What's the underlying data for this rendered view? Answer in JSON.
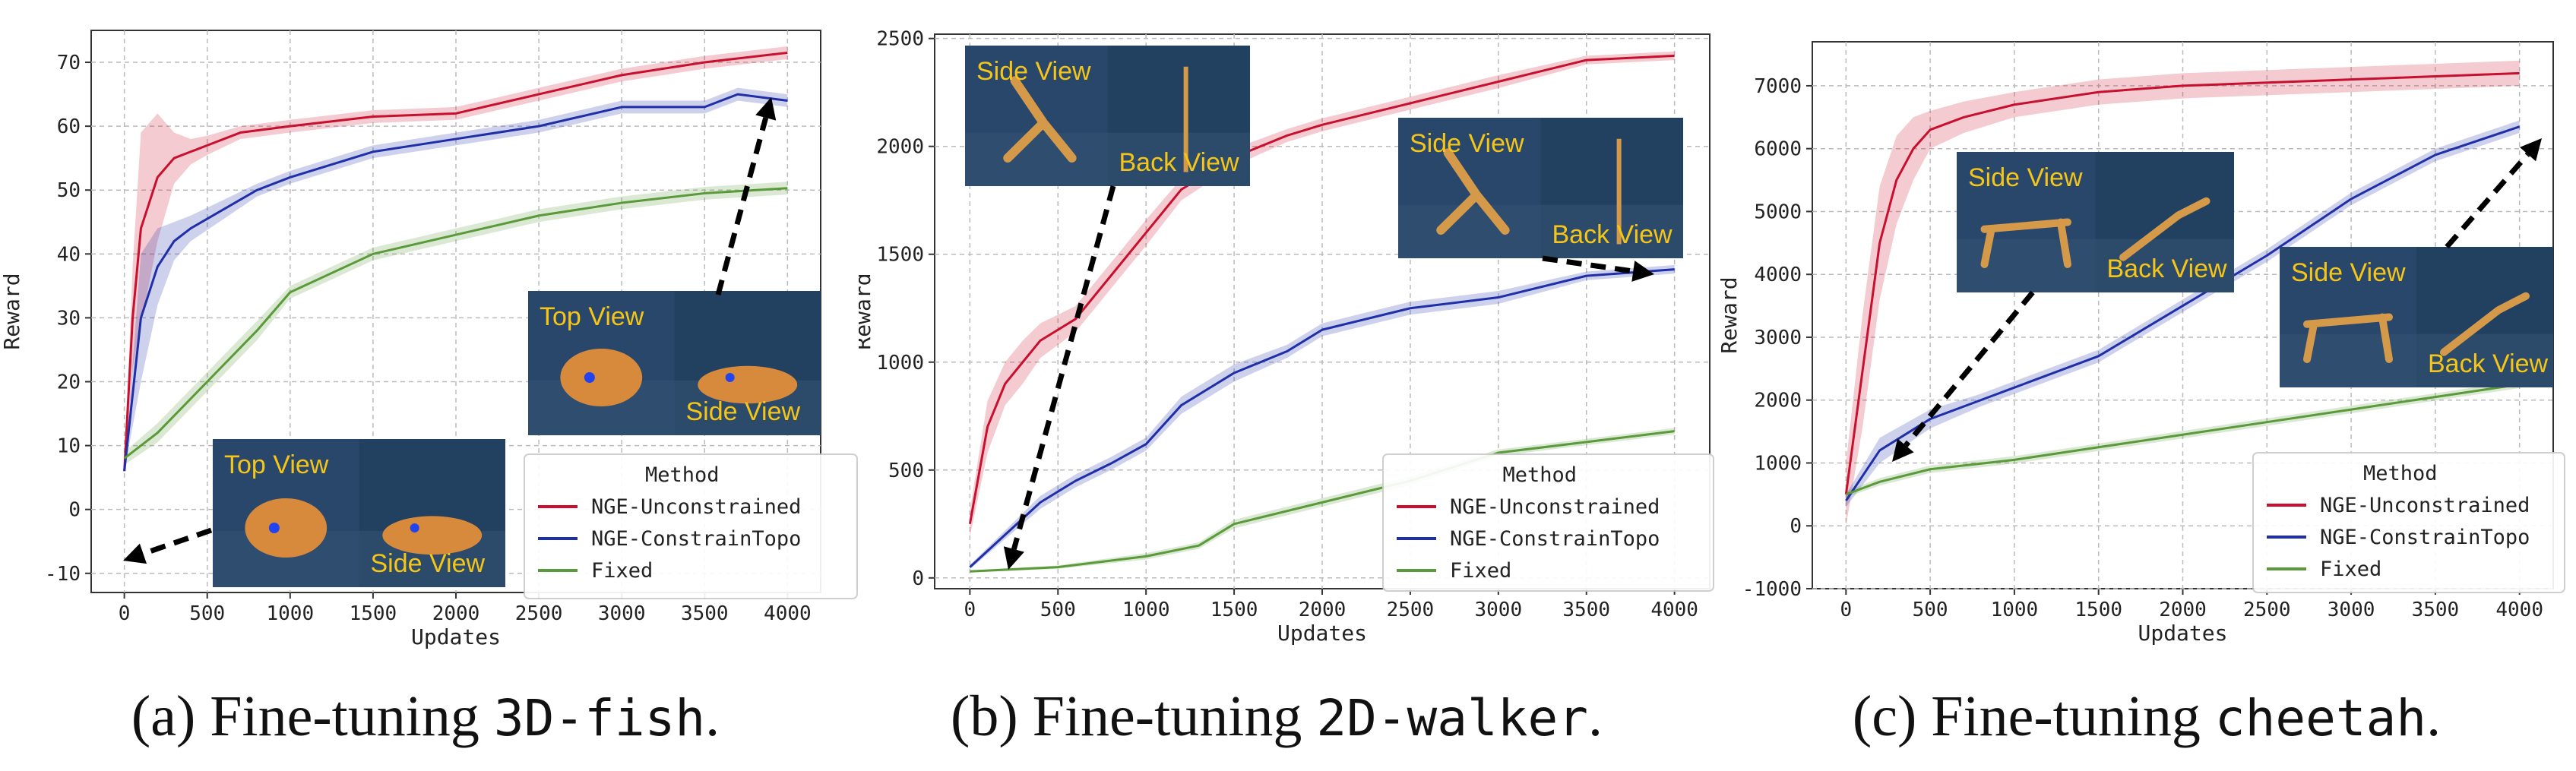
{
  "colors": {
    "unconstrained": "#c8102e",
    "constrain": "#1f2fa8",
    "fixed": "#5a9a3a"
  },
  "chart_data": [
    {
      "type": "line",
      "caption_prefix": "(a) Fine-tuning ",
      "caption_mono": "3D-fish",
      "caption_suffix": ".",
      "xlabel": "Updates",
      "ylabel": "Reward",
      "xlim": [
        -200,
        4200
      ],
      "ylim": [
        -13,
        75
      ],
      "xticks": [
        0,
        500,
        1000,
        1500,
        2000,
        2500,
        3000,
        3500,
        4000
      ],
      "yticks": [
        -10,
        0,
        10,
        20,
        30,
        40,
        50,
        60,
        70
      ],
      "legend_title": "Method",
      "series": [
        {
          "name": "NGE-Unconstrained",
          "color": "#c8102e",
          "x": [
            0,
            50,
            100,
            200,
            300,
            400,
            500,
            700,
            1000,
            1500,
            2000,
            2500,
            3000,
            3500,
            4000
          ],
          "y": [
            6,
            30,
            44,
            52,
            55,
            56,
            57,
            59,
            60,
            61.5,
            62,
            65,
            68,
            70,
            71.5
          ],
          "band": [
            0,
            8,
            15,
            10,
            4,
            2,
            1.5,
            1,
            1,
            1,
            1,
            1,
            1,
            1,
            1
          ]
        },
        {
          "name": "NGE-ConstrainTopo",
          "color": "#1f2fa8",
          "x": [
            0,
            100,
            200,
            300,
            400,
            600,
            800,
            1000,
            1500,
            2000,
            2500,
            3000,
            3500,
            3700,
            4000
          ],
          "y": [
            6,
            30,
            38,
            42,
            44,
            47,
            50,
            52,
            56,
            58,
            60,
            63,
            63,
            65,
            64
          ],
          "band": [
            0,
            10,
            6,
            3,
            2,
            1.5,
            1,
            1,
            1,
            1,
            1,
            1,
            1,
            1,
            1
          ]
        },
        {
          "name": "Fixed",
          "color": "#5a9a3a",
          "x": [
            0,
            200,
            500,
            800,
            1000,
            1500,
            2000,
            2500,
            3000,
            3500,
            4000
          ],
          "y": [
            8,
            12,
            20,
            28,
            34,
            40,
            43,
            46,
            48,
            49.5,
            50.3
          ],
          "band": [
            1,
            1.5,
            1.5,
            1.5,
            1,
            1,
            1,
            1,
            1,
            1,
            1
          ]
        }
      ],
      "insets": [
        {
          "name": "inset-fish-final",
          "label1": "Top View",
          "label2": "Side View"
        },
        {
          "name": "inset-fish-initial",
          "label1": "Top View",
          "label2": "Side View"
        }
      ]
    },
    {
      "type": "line",
      "caption_prefix": "(b) Fine-tuning ",
      "caption_mono": "2D-walker",
      "caption_suffix": ".",
      "xlabel": "Updates",
      "ylabel": "Reward",
      "xlim": [
        -200,
        4200
      ],
      "ylim": [
        -50,
        2520
      ],
      "xticks": [
        0,
        500,
        1000,
        1500,
        2000,
        2500,
        3000,
        3500,
        4000
      ],
      "yticks": [
        0,
        500,
        1000,
        1500,
        2000,
        2500
      ],
      "legend_title": "Method",
      "series": [
        {
          "name": "NGE-Unconstrained",
          "color": "#c8102e",
          "x": [
            0,
            100,
            200,
            300,
            400,
            600,
            800,
            1000,
            1200,
            1500,
            1800,
            2000,
            2500,
            3000,
            3500,
            4000
          ],
          "y": [
            250,
            700,
            900,
            1000,
            1100,
            1200,
            1400,
            1600,
            1800,
            1950,
            2050,
            2100,
            2200,
            2300,
            2400,
            2420
          ],
          "band": [
            60,
            120,
            100,
            100,
            80,
            60,
            60,
            60,
            50,
            40,
            30,
            30,
            30,
            30,
            20,
            20
          ]
        },
        {
          "name": "NGE-ConstrainTopo",
          "color": "#1f2fa8",
          "x": [
            0,
            200,
            400,
            600,
            800,
            1000,
            1200,
            1500,
            1800,
            2000,
            2500,
            3000,
            3500,
            4000
          ],
          "y": [
            50,
            200,
            350,
            450,
            530,
            620,
            800,
            950,
            1050,
            1150,
            1250,
            1300,
            1400,
            1430
          ],
          "band": [
            10,
            20,
            30,
            30,
            30,
            30,
            40,
            40,
            30,
            30,
            30,
            30,
            20,
            20
          ]
        },
        {
          "name": "Fixed",
          "color": "#5a9a3a",
          "x": [
            0,
            500,
            1000,
            1300,
            1500,
            2000,
            2500,
            3000,
            3500,
            4000
          ],
          "y": [
            30,
            50,
            100,
            150,
            250,
            350,
            450,
            580,
            630,
            680
          ],
          "band": [
            5,
            8,
            15,
            15,
            20,
            20,
            20,
            15,
            15,
            15
          ]
        }
      ],
      "insets": [
        {
          "name": "inset-walker-initial",
          "label1": "Side View",
          "label2": "Back View"
        },
        {
          "name": "inset-walker-final",
          "label1": "Side View",
          "label2": "Back View"
        }
      ]
    },
    {
      "type": "line",
      "caption_prefix": "(c) Fine-tuning ",
      "caption_mono": "cheetah",
      "caption_suffix": ".",
      "xlabel": "Updates",
      "ylabel": "Reward",
      "xlim": [
        -200,
        4200
      ],
      "ylim": [
        -1000,
        7700
      ],
      "xticks": [
        0,
        500,
        1000,
        1500,
        2000,
        2500,
        3000,
        3500,
        4000
      ],
      "yticks": [
        -1000,
        0,
        1000,
        2000,
        3000,
        4000,
        5000,
        6000,
        7000
      ],
      "legend_title": "Method",
      "series": [
        {
          "name": "NGE-Unconstrained",
          "color": "#c8102e",
          "x": [
            0,
            100,
            200,
            300,
            400,
            500,
            700,
            1000,
            1500,
            2000,
            2500,
            3000,
            3500,
            4000
          ],
          "y": [
            500,
            2500,
            4500,
            5500,
            6000,
            6300,
            6500,
            6700,
            6900,
            7000,
            7050,
            7100,
            7150,
            7200
          ],
          "band": [
            500,
            900,
            900,
            700,
            500,
            300,
            250,
            200,
            200,
            200,
            200,
            200,
            200,
            200
          ]
        },
        {
          "name": "NGE-ConstrainTopo",
          "color": "#1f2fa8",
          "x": [
            0,
            200,
            500,
            800,
            1000,
            1500,
            2000,
            2500,
            3000,
            3500,
            4000
          ],
          "y": [
            400,
            1200,
            1700,
            2000,
            2200,
            2700,
            3500,
            4300,
            5200,
            5900,
            6350
          ],
          "band": [
            100,
            200,
            150,
            100,
            100,
            100,
            100,
            100,
            100,
            100,
            100
          ]
        },
        {
          "name": "Fixed",
          "color": "#5a9a3a",
          "x": [
            0,
            200,
            500,
            1000,
            1500,
            2000,
            2500,
            3000,
            3500,
            4000
          ],
          "y": [
            500,
            700,
            900,
            1050,
            1250,
            1450,
            1650,
            1850,
            2050,
            2250
          ],
          "band": [
            50,
            60,
            60,
            60,
            60,
            60,
            60,
            60,
            60,
            60
          ]
        }
      ],
      "insets": [
        {
          "name": "inset-cheetah-initial",
          "label1": "Side View",
          "label2": "Back View"
        },
        {
          "name": "inset-cheetah-final",
          "label1": "Side View",
          "label2": "Back View"
        }
      ]
    }
  ]
}
